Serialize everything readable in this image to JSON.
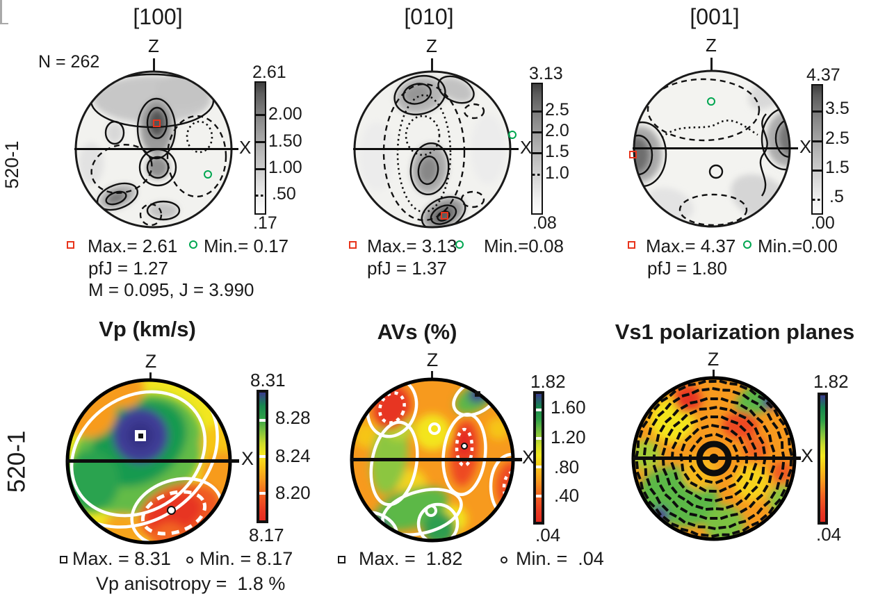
{
  "sample_count": "N = 262",
  "row_labels": {
    "row1": "520-1",
    "row2": "520-1"
  },
  "axes": {
    "z": "Z",
    "x": "X"
  },
  "plots": {
    "pf100": {
      "title": "[100]",
      "cbar_max": "2.61",
      "cbar_min": ".17",
      "cbar_ticks": [
        "2.00",
        "1.50",
        "1.00",
        ".50"
      ],
      "legend_max": "Max.= 2.61",
      "legend_min": "Min.= 0.17",
      "pfj": "pfJ = 1.27",
      "mj": "M = 0.095, J = 3.990"
    },
    "pf010": {
      "title": "[010]",
      "cbar_max": "3.13",
      "cbar_min": ".08",
      "cbar_ticks": [
        "2.5",
        "2.0",
        "1.5",
        "1.0"
      ],
      "legend_max": "Max.= 3.13",
      "legend_min": "Min.=0.08",
      "pfj": "pfJ = 1.37"
    },
    "pf001": {
      "title": "[001]",
      "cbar_max": "4.37",
      "cbar_min": ".00",
      "cbar_ticks": [
        "3.5",
        "2.5",
        "1.5",
        ".5"
      ],
      "legend_max": "Max.= 4.37",
      "legend_min": "Min.=0.00",
      "pfj": "pfJ = 1.80"
    },
    "vp": {
      "title": "Vp (km/s)",
      "cbar_max": "8.31",
      "cbar_min": "8.17",
      "cbar_ticks": [
        "8.28",
        "8.24",
        "8.20"
      ],
      "legend_max": "Max. = 8.31",
      "legend_min": "Min. = 8.17",
      "anisotropy": "Vp anisotropy =  1.8 %"
    },
    "avs": {
      "title": "AVs (%)",
      "cbar_max": "1.82",
      "cbar_min": ".04",
      "cbar_ticks": [
        "1.60",
        "1.20",
        ".80",
        ".40"
      ],
      "legend_max": "Max. =  1.82",
      "legend_min": "Min. =  .04"
    },
    "vs1": {
      "title": "Vs1 polarization planes",
      "cbar_max": "1.82",
      "cbar_min": ".04"
    }
  },
  "colors": {
    "max_marker_red": "#e8341c",
    "min_marker_green": "#00a650",
    "rainbow_high": "#3a3b8f",
    "rainbow_low": "#e52a20"
  },
  "chart_data": [
    {
      "type": "stereonet_contour",
      "title": "[100]",
      "sample": "520-1",
      "n": 262,
      "colormap": "grayscale",
      "max": 2.61,
      "min": 0.17,
      "pfJ": 1.27,
      "M": 0.095,
      "J": 3.99,
      "contour_levels": [
        2.0,
        1.5,
        1.0,
        0.5
      ],
      "axes": {
        "top": "Z",
        "east": "X"
      }
    },
    {
      "type": "stereonet_contour",
      "title": "[010]",
      "sample": "520-1",
      "colormap": "grayscale",
      "max": 3.13,
      "min": 0.08,
      "pfJ": 1.37,
      "contour_levels": [
        2.5,
        2.0,
        1.5,
        1.0
      ],
      "axes": {
        "top": "Z",
        "east": "X"
      }
    },
    {
      "type": "stereonet_contour",
      "title": "[001]",
      "sample": "520-1",
      "colormap": "grayscale",
      "max": 4.37,
      "min": 0.0,
      "pfJ": 1.8,
      "contour_levels": [
        3.5,
        2.5,
        1.5,
        0.5
      ],
      "axes": {
        "top": "Z",
        "east": "X"
      }
    },
    {
      "type": "stereonet_heatmap",
      "title": "Vp (km/s)",
      "sample": "520-1",
      "colormap": "rainbow",
      "max": 8.31,
      "min": 8.17,
      "anisotropy_pct": 1.8,
      "scale_ticks": [
        8.28,
        8.24,
        8.2
      ],
      "axes": {
        "top": "Z",
        "east": "X"
      }
    },
    {
      "type": "stereonet_heatmap",
      "title": "AVs (%)",
      "sample": "520-1",
      "colormap": "rainbow",
      "max": 1.82,
      "min": 0.04,
      "scale_ticks": [
        1.6,
        1.2,
        0.8,
        0.4
      ],
      "axes": {
        "top": "Z",
        "east": "X"
      }
    },
    {
      "type": "stereonet_vectors",
      "title": "Vs1 polarization planes",
      "sample": "520-1",
      "colormap": "rainbow",
      "scale_max": 1.82,
      "scale_min": 0.04,
      "axes": {
        "top": "Z",
        "east": "X"
      }
    }
  ]
}
